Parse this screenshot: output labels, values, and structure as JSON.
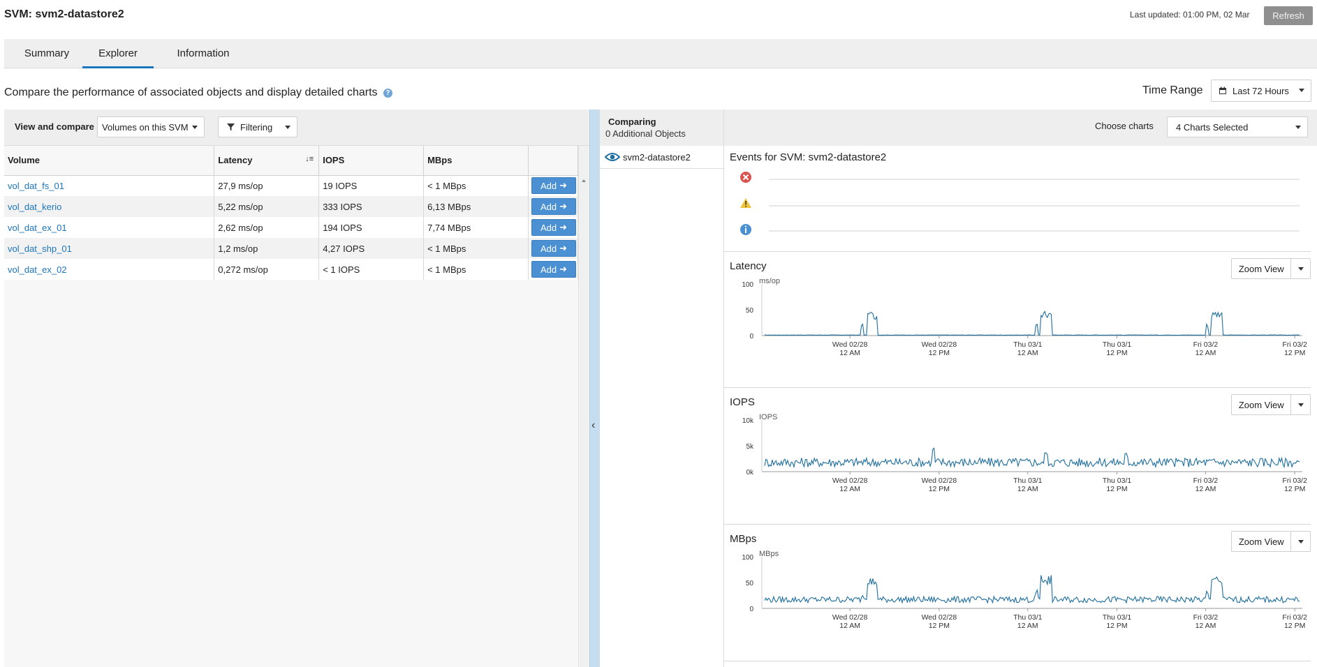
{
  "header": {
    "title": "SVM: svm2-datastore2",
    "last_updated": "Last updated: 01:00 PM, 02 Mar",
    "refresh_label": "Refresh"
  },
  "tabs": [
    {
      "label": "Summary",
      "active": false
    },
    {
      "label": "Explorer",
      "active": true
    },
    {
      "label": "Information",
      "active": false
    }
  ],
  "intro": {
    "text": "Compare the performance of associated objects and display detailed charts",
    "time_range_label": "Time Range",
    "time_range_value": "Last 72 Hours"
  },
  "left_panel": {
    "view_compare_label": "View and compare",
    "view_compare_value": "Volumes on this SVM",
    "filtering_label": "Filtering",
    "columns": [
      "Volume",
      "Latency",
      "IOPS",
      "MBps"
    ],
    "add_label": "Add",
    "rows": [
      {
        "volume": "vol_dat_fs_01",
        "latency": "27,9 ms/op",
        "iops": "19 IOPS",
        "mbps": "< 1 MBps"
      },
      {
        "volume": "vol_dat_kerio",
        "latency": "5,22 ms/op",
        "iops": "333 IOPS",
        "mbps": "6,13 MBps"
      },
      {
        "volume": "vol_dat_ex_01",
        "latency": "2,62 ms/op",
        "iops": "194 IOPS",
        "mbps": "7,74 MBps"
      },
      {
        "volume": "vol_dat_shp_01",
        "latency": "1,2 ms/op",
        "iops": "4,27 IOPS",
        "mbps": "< 1 MBps"
      },
      {
        "volume": "vol_dat_ex_02",
        "latency": "0,272 ms/op",
        "iops": "< 1 IOPS",
        "mbps": "< 1 MBps"
      }
    ]
  },
  "comparing": {
    "title": "Comparing",
    "subtitle": "0 Additional Objects",
    "item": "svm2-datastore2"
  },
  "right_panel": {
    "choose_charts_label": "Choose charts",
    "choose_charts_value": "4 Charts Selected",
    "events_title": "Events for SVM: svm2-datastore2",
    "zoom_label": "Zoom View",
    "colors": {
      "line": "#1e6e9e",
      "error": "#d9534f",
      "warning": "#f0c43a",
      "info": "#4a90d2"
    }
  },
  "chart_data": [
    {
      "type": "line",
      "title": "Latency",
      "ylabel": "ms/op",
      "yticks": [
        "100",
        "50",
        "0"
      ],
      "ylim": [
        0,
        100
      ],
      "xticks": [
        [
          "Wed 02/28",
          "12 AM"
        ],
        [
          "Wed 02/28",
          "12 PM"
        ],
        [
          "Thu 03/1",
          "12 AM"
        ],
        [
          "Thu 03/1",
          "12 PM"
        ],
        [
          "Fri 03/2",
          "12 AM"
        ],
        [
          "Fri 03/2",
          "12 PM"
        ]
      ],
      "series": [
        {
          "shape": "baseline_with_spikes",
          "baseline": 1,
          "noise": 0.3,
          "spikes": [
            {
              "start": 0.18,
              "width": 0.035,
              "peak": 45
            },
            {
              "start": 0.505,
              "width": 0.035,
              "peak": 48
            },
            {
              "start": 0.825,
              "width": 0.035,
              "peak": 45
            }
          ]
        }
      ]
    },
    {
      "type": "line",
      "title": "IOPS",
      "ylabel": "IOPS",
      "yticks": [
        "10k",
        "5k",
        "0k"
      ],
      "ylim": [
        0,
        10000
      ],
      "xticks": [
        [
          "Wed 02/28",
          "12 AM"
        ],
        [
          "Wed 02/28",
          "12 PM"
        ],
        [
          "Thu 03/1",
          "12 AM"
        ],
        [
          "Thu 03/1",
          "12 PM"
        ],
        [
          "Fri 03/2",
          "12 AM"
        ],
        [
          "Fri 03/2",
          "12 PM"
        ]
      ],
      "series": [
        {
          "shape": "noisy",
          "baseline": 1800,
          "noise": 900,
          "spikes": [
            {
              "start": 0.31,
              "width": 0.01,
              "peak": 4800
            },
            {
              "start": 0.52,
              "width": 0.01,
              "peak": 4200
            },
            {
              "start": 0.67,
              "width": 0.01,
              "peak": 3700
            }
          ]
        }
      ]
    },
    {
      "type": "line",
      "title": "MBps",
      "ylabel": "MBps",
      "yticks": [
        "100",
        "50",
        "0"
      ],
      "ylim": [
        0,
        100
      ],
      "xticks": [
        [
          "Wed 02/28",
          "12 AM"
        ],
        [
          "Wed 02/28",
          "12 PM"
        ],
        [
          "Thu 03/1",
          "12 AM"
        ],
        [
          "Thu 03/1",
          "12 PM"
        ],
        [
          "Fri 03/2",
          "12 AM"
        ],
        [
          "Fri 03/2",
          "12 PM"
        ]
      ],
      "series": [
        {
          "shape": "noisy",
          "baseline": 17,
          "noise": 6,
          "spikes": [
            {
              "start": 0.18,
              "width": 0.035,
              "peak": 60
            },
            {
              "start": 0.505,
              "width": 0.035,
              "peak": 65
            },
            {
              "start": 0.825,
              "width": 0.035,
              "peak": 65
            }
          ]
        }
      ]
    }
  ]
}
